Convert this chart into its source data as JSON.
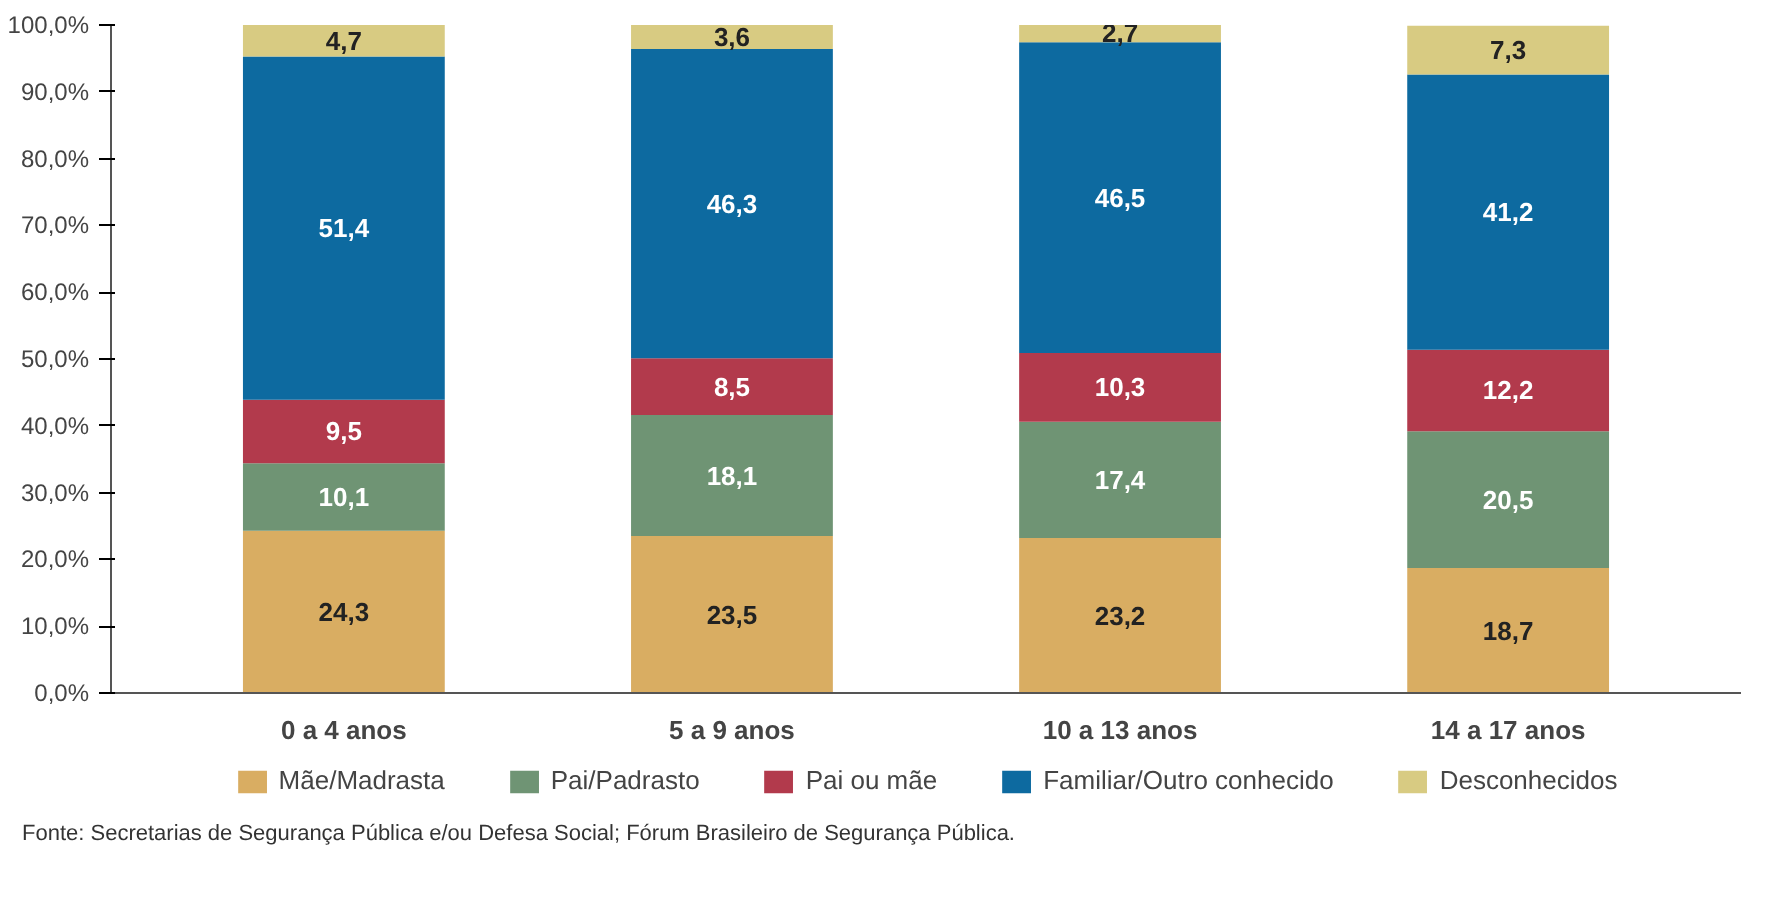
{
  "chart_data": {
    "type": "bar",
    "stacked": true,
    "categories": [
      "0 a 4 anos",
      "5 a 9 anos",
      "10 a 13 anos",
      "14 a 17 anos"
    ],
    "series": [
      {
        "name": "Mãe/Madrasta",
        "color": "#d9ad62",
        "values": [
          24.3,
          23.5,
          23.2,
          18.7
        ],
        "value_labels": [
          "24,3",
          "23,5",
          "23,2",
          "18,7"
        ]
      },
      {
        "name": "Pai/Padrasto",
        "color": "#6f9474",
        "values": [
          10.1,
          18.1,
          17.4,
          20.5
        ],
        "value_labels": [
          "10,1",
          "18,1",
          "17,4",
          "20,5"
        ]
      },
      {
        "name": "Pai ou mãe",
        "color": "#b23a4c",
        "values": [
          9.5,
          8.5,
          10.3,
          12.2
        ],
        "value_labels": [
          "9,5",
          "8,5",
          "10,3",
          "12,2"
        ]
      },
      {
        "name": "Familiar/Outro conhecido",
        "color": "#0d6aa0",
        "values": [
          51.4,
          46.3,
          46.5,
          41.2
        ],
        "value_labels": [
          "51,4",
          "46,3",
          "46,5",
          "41,2"
        ]
      },
      {
        "name": "Desconhecidos",
        "color": "#d8cb82",
        "values": [
          4.7,
          3.6,
          2.7,
          7.3
        ],
        "value_labels": [
          "4,7",
          "3,6",
          "2,7",
          "7,3"
        ]
      }
    ],
    "ylim": [
      0,
      100
    ],
    "yticks": [
      {
        "value": 0,
        "label": "0,0%"
      },
      {
        "value": 10,
        "label": "10,0%"
      },
      {
        "value": 20,
        "label": "20,0%"
      },
      {
        "value": 30,
        "label": "30,0%"
      },
      {
        "value": 40,
        "label": "40,0%"
      },
      {
        "value": 50,
        "label": "50,0%"
      },
      {
        "value": 60,
        "label": "60,0%"
      },
      {
        "value": 70,
        "label": "70,0%"
      },
      {
        "value": 80,
        "label": "80,0%"
      },
      {
        "value": 90,
        "label": "90,0%"
      },
      {
        "value": 100,
        "label": "100,0%"
      }
    ],
    "legend": "bottom",
    "grid": false,
    "annotations": [
      "Fonte: Secretarias de Segurança Pública e/ou Defesa Social; Fórum Brasileiro de Segurança Pública."
    ]
  }
}
